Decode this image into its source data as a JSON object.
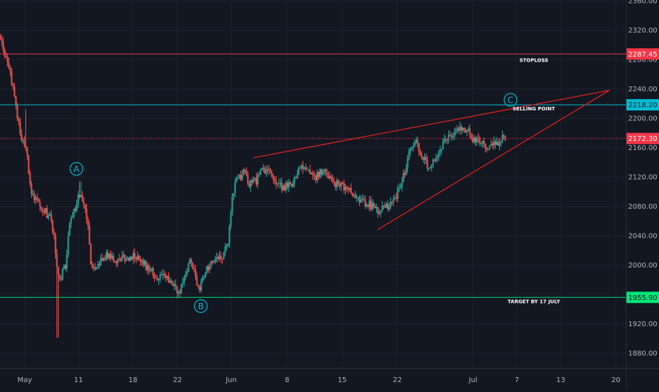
{
  "chart_data": {
    "type": "candlestick",
    "title": "",
    "xlabel": "",
    "ylabel": "",
    "ylim": [
      1860,
      2365
    ],
    "y_ticks": [
      1880,
      1920,
      1960,
      2000,
      2040,
      2080,
      2120,
      2160,
      2200,
      2240,
      2280,
      2320,
      2360
    ],
    "y_tick_labels": [
      "1880.00",
      "1920.00",
      "1960.00",
      "2000.00",
      "2040.00",
      "2080.00",
      "2120.00",
      "2160.00",
      "2200.00",
      "2240.00",
      "2280.00",
      "2320.00",
      "2360.00"
    ],
    "x_ticks": [
      {
        "label": "May",
        "date": "2020-05-01"
      },
      {
        "label": "11",
        "date": "2020-05-11"
      },
      {
        "label": "18",
        "date": "2020-05-18"
      },
      {
        "label": "22",
        "date": "2020-05-22"
      },
      {
        "label": "Jun",
        "date": "2020-06-01"
      },
      {
        "label": "8",
        "date": "2020-06-08"
      },
      {
        "label": "15",
        "date": "2020-06-15"
      },
      {
        "label": "22",
        "date": "2020-06-22"
      },
      {
        "label": "Jul",
        "date": "2020-07-01"
      },
      {
        "label": "7",
        "date": "2020-07-07"
      },
      {
        "label": "13",
        "date": "2020-07-13"
      },
      {
        "label": "20",
        "date": "2020-07-20"
      }
    ],
    "price_path": [
      [
        0,
        2312
      ],
      [
        8,
        2282
      ],
      [
        15,
        2255
      ],
      [
        22,
        2215
      ],
      [
        28,
        2180
      ],
      [
        33,
        2162
      ],
      [
        38,
        2150
      ],
      [
        42,
        2110
      ],
      [
        47,
        2090
      ],
      [
        55,
        2085
      ],
      [
        62,
        2075
      ],
      [
        70,
        2065
      ],
      [
        76,
        2040
      ],
      [
        80,
        1995
      ],
      [
        84,
        1975
      ],
      [
        88,
        1990
      ],
      [
        93,
        2000
      ],
      [
        97,
        2060
      ],
      [
        103,
        2070
      ],
      [
        109,
        2090
      ],
      [
        113,
        2100
      ],
      [
        118,
        2080
      ],
      [
        123,
        2065
      ],
      [
        128,
        2000
      ],
      [
        135,
        1995
      ],
      [
        142,
        2005
      ],
      [
        150,
        2015
      ],
      [
        160,
        2005
      ],
      [
        170,
        2010
      ],
      [
        180,
        2008
      ],
      [
        190,
        2015
      ],
      [
        200,
        2005
      ],
      [
        210,
        1995
      ],
      [
        220,
        1985
      ],
      [
        230,
        1985
      ],
      [
        238,
        1980
      ],
      [
        245,
        1970
      ],
      [
        252,
        1960
      ],
      [
        258,
        1975
      ],
      [
        265,
        2000
      ],
      [
        270,
        2005
      ],
      [
        276,
        1980
      ],
      [
        282,
        1970
      ],
      [
        288,
        1985
      ],
      [
        296,
        2000
      ],
      [
        306,
        2005
      ],
      [
        314,
        2010
      ],
      [
        322,
        2030
      ],
      [
        327,
        2080
      ],
      [
        331,
        2110
      ],
      [
        337,
        2120
      ],
      [
        345,
        2125
      ],
      [
        353,
        2110
      ],
      [
        362,
        2115
      ],
      [
        372,
        2130
      ],
      [
        380,
        2125
      ],
      [
        390,
        2115
      ],
      [
        400,
        2105
      ],
      [
        410,
        2110
      ],
      [
        418,
        2120
      ],
      [
        426,
        2135
      ],
      [
        436,
        2125
      ],
      [
        446,
        2120
      ],
      [
        456,
        2130
      ],
      [
        466,
        2115
      ],
      [
        476,
        2110
      ],
      [
        486,
        2105
      ],
      [
        496,
        2100
      ],
      [
        506,
        2090
      ],
      [
        516,
        2085
      ],
      [
        526,
        2080
      ],
      [
        536,
        2072
      ],
      [
        546,
        2078
      ],
      [
        556,
        2085
      ],
      [
        566,
        2110
      ],
      [
        574,
        2130
      ],
      [
        580,
        2160
      ],
      [
        588,
        2165
      ],
      [
        596,
        2150
      ],
      [
        604,
        2135
      ],
      [
        612,
        2140
      ],
      [
        620,
        2155
      ],
      [
        630,
        2170
      ],
      [
        640,
        2180
      ],
      [
        650,
        2190
      ],
      [
        660,
        2185
      ],
      [
        670,
        2170
      ],
      [
        680,
        2168
      ],
      [
        690,
        2160
      ],
      [
        700,
        2165
      ],
      [
        708,
        2172
      ],
      [
        715,
        2172
      ]
    ],
    "extreme_wicks": [
      {
        "x": 81,
        "low": 1901
      },
      {
        "x": 36,
        "high": 2212
      },
      {
        "x": 113,
        "high": 2114
      }
    ],
    "horizontal_levels": [
      {
        "price": 2287.45,
        "label": "2287.45",
        "annotation": "STOPLOSS",
        "color": "#f23645",
        "style": "solid"
      },
      {
        "price": 2218.2,
        "label": "2218.20",
        "annotation": "SELLING POINT",
        "color": "#00bcd4",
        "style": "solid"
      },
      {
        "price": 2172.3,
        "label": "2172.30",
        "annotation": "",
        "color": "#f23645",
        "style": "dotted"
      },
      {
        "price": 1955.9,
        "label": "1955.90",
        "annotation": "TARGET BY 17 JULY",
        "color": "#00e676",
        "style": "solid"
      }
    ],
    "wedge_lines": [
      {
        "x1": 358,
        "y1": 2146,
        "x2": 862,
        "y2": 2238
      },
      {
        "x1": 534,
        "y1": 2048,
        "x2": 862,
        "y2": 2238
      }
    ],
    "wave_labels": [
      {
        "label": "A",
        "x": 108,
        "price": 2131
      },
      {
        "label": "B",
        "x": 284,
        "price": 1944
      },
      {
        "label": "C",
        "x": 722,
        "price": 2225
      }
    ],
    "colors": {
      "background": "#131722",
      "up": "#26a69a",
      "down": "#ef5350",
      "axis_text": "#b2b5be",
      "wave_label": "#00bcd4",
      "trendline": "#e0201e"
    }
  }
}
